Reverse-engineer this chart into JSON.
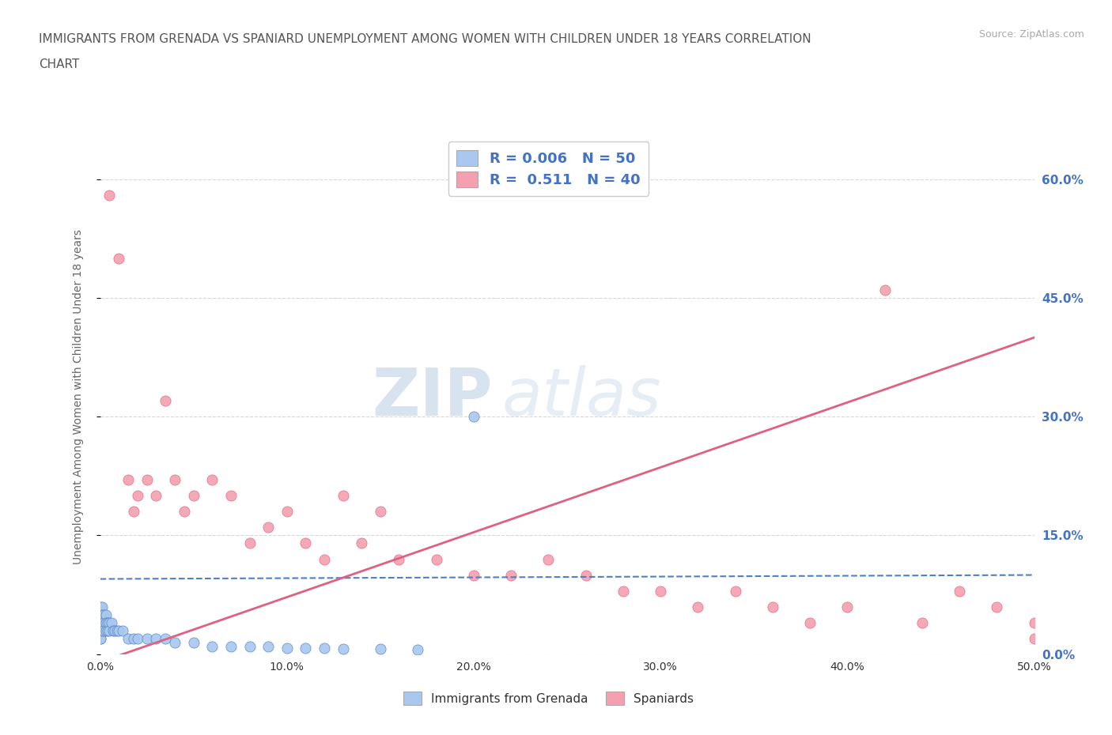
{
  "title_line1": "IMMIGRANTS FROM GRENADA VS SPANIARD UNEMPLOYMENT AMONG WOMEN WITH CHILDREN UNDER 18 YEARS CORRELATION",
  "title_line2": "CHART",
  "source": "Source: ZipAtlas.com",
  "ylabel": "Unemployment Among Women with Children Under 18 years",
  "xlim": [
    0.0,
    0.5
  ],
  "ylim": [
    0.0,
    0.65
  ],
  "yticks_right": [
    0.0,
    0.15,
    0.3,
    0.45,
    0.6
  ],
  "ytick_labels_right": [
    "0.0%",
    "15.0%",
    "30.0%",
    "45.0%",
    "60.0%"
  ],
  "xticks": [
    0.0,
    0.1,
    0.2,
    0.3,
    0.4,
    0.5
  ],
  "xtick_labels": [
    "0.0%",
    "10.0%",
    "20.0%",
    "30.0%",
    "40.0%",
    "50.0%"
  ],
  "color_blue": "#a8c8f0",
  "color_pink": "#f4a0b0",
  "color_blue_line": "#5080c0",
  "color_pink_line": "#e06080",
  "color_blue_text": "#4472c4",
  "grid_color": "#d8d8d8",
  "background_color": "#ffffff",
  "watermark_color": "#c8d8ea",
  "grenada_x": [
    0.0,
    0.0,
    0.0,
    0.0,
    0.0,
    0.0,
    0.0,
    0.0,
    0.0,
    0.0,
    0.001,
    0.001,
    0.001,
    0.001,
    0.001,
    0.002,
    0.002,
    0.002,
    0.003,
    0.003,
    0.003,
    0.004,
    0.004,
    0.005,
    0.005,
    0.006,
    0.007,
    0.008,
    0.009,
    0.01,
    0.012,
    0.015,
    0.018,
    0.02,
    0.025,
    0.03,
    0.035,
    0.04,
    0.05,
    0.06,
    0.07,
    0.08,
    0.09,
    0.1,
    0.11,
    0.12,
    0.13,
    0.15,
    0.17,
    0.2
  ],
  "grenada_y": [
    0.06,
    0.05,
    0.05,
    0.04,
    0.04,
    0.04,
    0.03,
    0.03,
    0.02,
    0.02,
    0.06,
    0.05,
    0.04,
    0.04,
    0.03,
    0.05,
    0.04,
    0.03,
    0.05,
    0.04,
    0.03,
    0.04,
    0.03,
    0.04,
    0.03,
    0.04,
    0.03,
    0.03,
    0.03,
    0.03,
    0.03,
    0.02,
    0.02,
    0.02,
    0.02,
    0.02,
    0.02,
    0.015,
    0.015,
    0.01,
    0.01,
    0.01,
    0.01,
    0.008,
    0.008,
    0.008,
    0.007,
    0.007,
    0.006,
    0.3
  ],
  "spaniard_x": [
    0.005,
    0.01,
    0.015,
    0.018,
    0.02,
    0.025,
    0.03,
    0.035,
    0.04,
    0.045,
    0.05,
    0.06,
    0.07,
    0.08,
    0.09,
    0.1,
    0.11,
    0.12,
    0.13,
    0.14,
    0.15,
    0.16,
    0.18,
    0.2,
    0.22,
    0.24,
    0.26,
    0.28,
    0.3,
    0.32,
    0.34,
    0.36,
    0.38,
    0.4,
    0.42,
    0.44,
    0.46,
    0.48,
    0.5,
    0.5
  ],
  "spaniard_y": [
    0.58,
    0.5,
    0.22,
    0.18,
    0.2,
    0.22,
    0.2,
    0.32,
    0.22,
    0.18,
    0.2,
    0.22,
    0.2,
    0.14,
    0.16,
    0.18,
    0.14,
    0.12,
    0.2,
    0.14,
    0.18,
    0.12,
    0.12,
    0.1,
    0.1,
    0.12,
    0.1,
    0.08,
    0.08,
    0.06,
    0.08,
    0.06,
    0.04,
    0.06,
    0.46,
    0.04,
    0.08,
    0.06,
    0.04,
    0.02
  ],
  "pink_trend_x0": 0.0,
  "pink_trend_y0": -0.01,
  "pink_trend_x1": 0.5,
  "pink_trend_y1": 0.4,
  "blue_trend_x0": 0.0,
  "blue_trend_y0": 0.095,
  "blue_trend_x1": 0.5,
  "blue_trend_y1": 0.1
}
